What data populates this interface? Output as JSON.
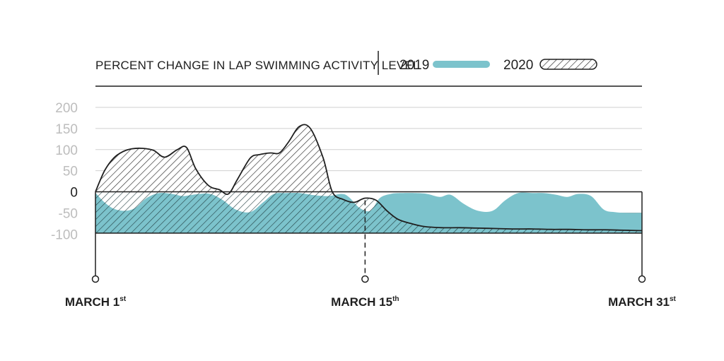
{
  "chart_data": {
    "type": "area",
    "title": "PERCENT CHANGE IN LAP SWIMMING ACTIVITY LEVEL",
    "xlabel": "",
    "ylabel": "",
    "ylim": [
      -100,
      200
    ],
    "xlim": [
      1,
      31
    ],
    "y_ticks": [
      "200",
      "150",
      "100",
      "50",
      "0",
      "-50",
      "-100"
    ],
    "y_tick_values": [
      200,
      150,
      100,
      50,
      0,
      -50,
      -100
    ],
    "x_ticks": [
      {
        "day": 1,
        "label": "MARCH 1",
        "suffix": "st"
      },
      {
        "day": 15.8,
        "label": "MARCH 15",
        "suffix": "th"
      },
      {
        "day": 31,
        "label": "MARCH 31",
        "suffix": "st"
      }
    ],
    "grid": true,
    "legend_position": "top-right",
    "colors": {
      "series_2019": "#7cc3cc",
      "series_2020_stroke": "#1f1f1f",
      "zero_tick_color": "#1f1f1f",
      "other_tick_color": "#bdbdbd"
    },
    "series": [
      {
        "name": "2019",
        "x": [
          1,
          1.5,
          2,
          2.6,
          3.2,
          3.8,
          4.5,
          5.2,
          5.8,
          6.5,
          7.3,
          8,
          8.7,
          9.5,
          10.2,
          10.8,
          11.5,
          12.2,
          13,
          13.8,
          14.5,
          14.9,
          15.5,
          16.1,
          16.6,
          17.2,
          17.8,
          18.6,
          19.2,
          19.9,
          20.5,
          21.2,
          22,
          22.8,
          23.5,
          24.2,
          25,
          25.6,
          26.3,
          26.9,
          27.5,
          28.2,
          28.9,
          29.5,
          30.2,
          31
        ],
        "y": [
          -2,
          -25,
          -40,
          -45,
          -38,
          -15,
          -3,
          -5,
          -10,
          -6,
          -5,
          -20,
          -42,
          -48,
          -25,
          -5,
          -3,
          -3,
          -8,
          -10,
          -5,
          -12,
          -38,
          -45,
          -15,
          -5,
          -3,
          -3,
          -5,
          -12,
          -7,
          -28,
          -45,
          -45,
          -20,
          -3,
          -3,
          -3,
          -7,
          -12,
          -5,
          -10,
          -42,
          -48,
          -50,
          -50
        ]
      },
      {
        "name": "2020",
        "x": [
          1,
          1.5,
          2,
          2.5,
          3,
          3.6,
          4.2,
          4.8,
          5.5,
          6,
          6.5,
          7.2,
          7.8,
          8.3,
          8.8,
          9.5,
          10,
          10.6,
          11.1,
          11.6,
          12.2,
          12.8,
          13.5,
          14,
          14.6,
          15.2,
          15.8,
          16.4,
          17,
          17.6,
          18.3,
          19,
          20,
          21,
          22,
          23,
          24,
          25,
          26,
          27,
          28,
          29,
          30,
          31
        ],
        "y": [
          0,
          50,
          80,
          95,
          102,
          103,
          98,
          82,
          100,
          105,
          55,
          15,
          5,
          -5,
          30,
          80,
          88,
          92,
          92,
          118,
          155,
          150,
          80,
          0,
          -18,
          -25,
          -15,
          -20,
          -45,
          -65,
          -75,
          -82,
          -85,
          -85,
          -86,
          -87,
          -88,
          -88,
          -89,
          -89,
          -90,
          -90,
          -91,
          -92
        ]
      }
    ]
  }
}
